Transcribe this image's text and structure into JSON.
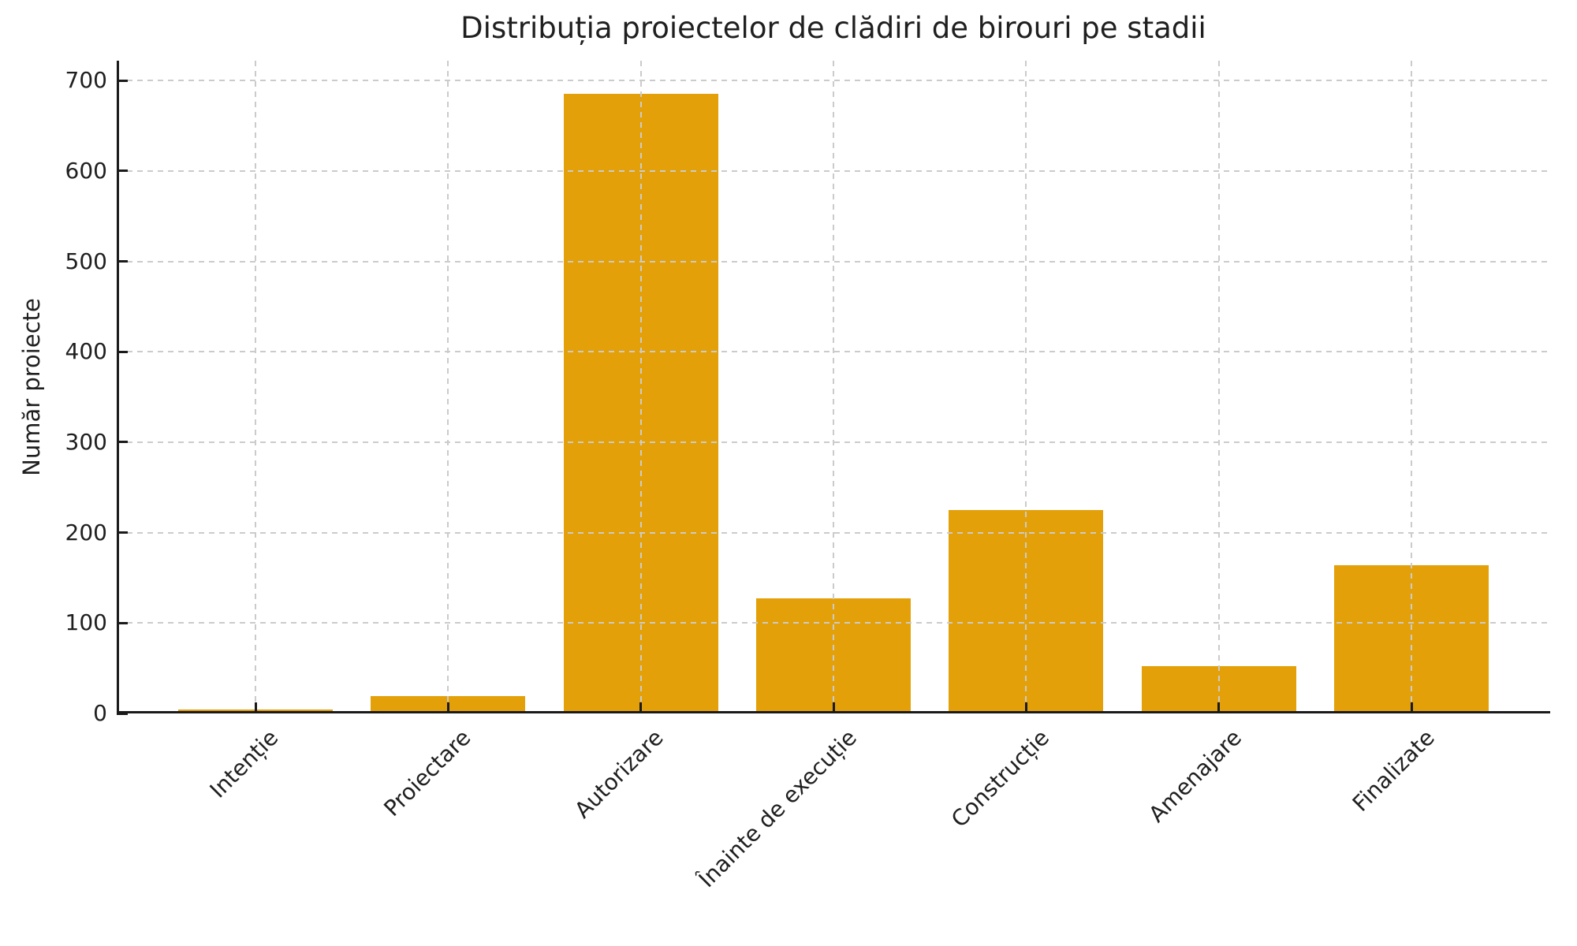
{
  "chart_data": {
    "type": "bar",
    "title": "Distribuția proiectelor de clădiri de birouri pe stadii",
    "xlabel": "",
    "ylabel": "Număr proiecte",
    "categories": [
      "Intenție",
      "Proiectare",
      "Autorizare",
      "Înainte de execuție",
      "Construcție",
      "Amenajare",
      "Finalizate"
    ],
    "values": [
      4,
      19,
      685,
      127,
      225,
      52,
      164
    ],
    "yticks": [
      0,
      100,
      200,
      300,
      400,
      500,
      600,
      700
    ],
    "ylim": [
      0,
      722
    ],
    "grid": true,
    "grid_style": "dashed",
    "legend_position": "none",
    "colors": {
      "bar": "#E3A008",
      "grid": "#cbcbcb",
      "axis": "#1a1a1a",
      "text": "#1f1f1f",
      "background": "#ffffff"
    }
  }
}
